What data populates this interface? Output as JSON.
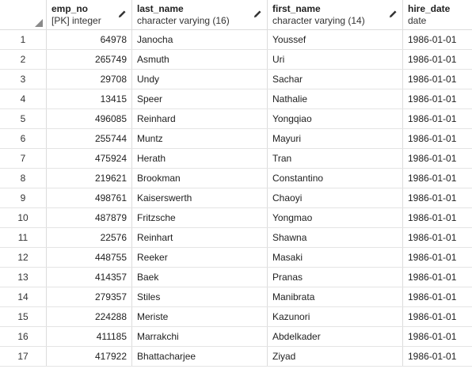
{
  "columns": [
    {
      "name": "emp_no",
      "type": "[PK] integer"
    },
    {
      "name": "last_name",
      "type": "character varying (16)"
    },
    {
      "name": "first_name",
      "type": "character varying (14)"
    },
    {
      "name": "hire_date",
      "type": "date"
    }
  ],
  "rows": [
    {
      "idx": "1",
      "emp_no": "64978",
      "last_name": "Janocha",
      "first_name": "Youssef",
      "hire_date": "1986-01-01"
    },
    {
      "idx": "2",
      "emp_no": "265749",
      "last_name": "Asmuth",
      "first_name": "Uri",
      "hire_date": "1986-01-01"
    },
    {
      "idx": "3",
      "emp_no": "29708",
      "last_name": "Undy",
      "first_name": "Sachar",
      "hire_date": "1986-01-01"
    },
    {
      "idx": "4",
      "emp_no": "13415",
      "last_name": "Speer",
      "first_name": "Nathalie",
      "hire_date": "1986-01-01"
    },
    {
      "idx": "5",
      "emp_no": "496085",
      "last_name": "Reinhard",
      "first_name": "Yongqiao",
      "hire_date": "1986-01-01"
    },
    {
      "idx": "6",
      "emp_no": "255744",
      "last_name": "Muntz",
      "first_name": "Mayuri",
      "hire_date": "1986-01-01"
    },
    {
      "idx": "7",
      "emp_no": "475924",
      "last_name": "Herath",
      "first_name": "Tran",
      "hire_date": "1986-01-01"
    },
    {
      "idx": "8",
      "emp_no": "219621",
      "last_name": "Brookman",
      "first_name": "Constantino",
      "hire_date": "1986-01-01"
    },
    {
      "idx": "9",
      "emp_no": "498761",
      "last_name": "Kaiserswerth",
      "first_name": "Chaoyi",
      "hire_date": "1986-01-01"
    },
    {
      "idx": "10",
      "emp_no": "487879",
      "last_name": "Fritzsche",
      "first_name": "Yongmao",
      "hire_date": "1986-01-01"
    },
    {
      "idx": "11",
      "emp_no": "22576",
      "last_name": "Reinhart",
      "first_name": "Shawna",
      "hire_date": "1986-01-01"
    },
    {
      "idx": "12",
      "emp_no": "448755",
      "last_name": "Reeker",
      "first_name": "Masaki",
      "hire_date": "1986-01-01"
    },
    {
      "idx": "13",
      "emp_no": "414357",
      "last_name": "Baek",
      "first_name": "Pranas",
      "hire_date": "1986-01-01"
    },
    {
      "idx": "14",
      "emp_no": "279357",
      "last_name": "Stiles",
      "first_name": "Manibrata",
      "hire_date": "1986-01-01"
    },
    {
      "idx": "15",
      "emp_no": "224288",
      "last_name": "Meriste",
      "first_name": "Kazunori",
      "hire_date": "1986-01-01"
    },
    {
      "idx": "16",
      "emp_no": "411185",
      "last_name": "Marrakchi",
      "first_name": "Abdelkader",
      "hire_date": "1986-01-01"
    },
    {
      "idx": "17",
      "emp_no": "417922",
      "last_name": "Bhattacharjee",
      "first_name": "Ziyad",
      "hire_date": "1986-01-01"
    }
  ],
  "icons": {
    "edit_column": "pencil-icon",
    "select_all": "corner-triangle-icon"
  }
}
